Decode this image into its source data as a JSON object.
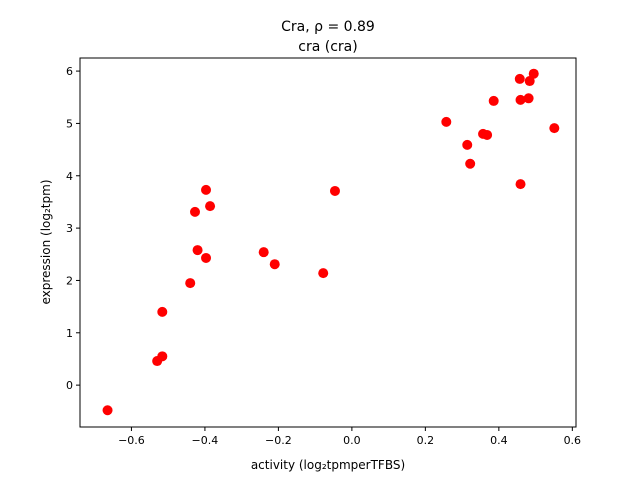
{
  "chart_data": {
    "type": "scatter",
    "title_line1": "Cra, ρ = 0.89",
    "title_line2": "cra (cra)",
    "xlabel": "activity (log₂tpmperTFBS)",
    "ylabel": "expression (log₂tpm)",
    "xlim": [
      -0.74,
      0.61
    ],
    "ylim": [
      -0.8,
      6.25
    ],
    "xticks": [
      -0.6,
      -0.4,
      -0.2,
      0.0,
      0.2,
      0.4,
      0.6
    ],
    "xtick_labels": [
      "−0.6",
      "−0.4",
      "−0.2",
      "0.0",
      "0.2",
      "0.4",
      "0.6"
    ],
    "yticks": [
      0,
      1,
      2,
      3,
      4,
      5,
      6
    ],
    "ytick_labels": [
      "0",
      "1",
      "2",
      "3",
      "4",
      "5",
      "6"
    ],
    "grid": false,
    "marker_color": "#ff0000",
    "points": [
      {
        "x": -0.665,
        "y": -0.48
      },
      {
        "x": -0.53,
        "y": 0.46
      },
      {
        "x": -0.516,
        "y": 0.55
      },
      {
        "x": -0.516,
        "y": 1.4
      },
      {
        "x": -0.44,
        "y": 1.95
      },
      {
        "x": -0.427,
        "y": 3.31
      },
      {
        "x": -0.42,
        "y": 2.58
      },
      {
        "x": -0.397,
        "y": 3.73
      },
      {
        "x": -0.386,
        "y": 3.42
      },
      {
        "x": -0.397,
        "y": 2.43
      },
      {
        "x": -0.24,
        "y": 2.54
      },
      {
        "x": -0.21,
        "y": 2.31
      },
      {
        "x": -0.078,
        "y": 2.14
      },
      {
        "x": -0.046,
        "y": 3.71
      },
      {
        "x": 0.257,
        "y": 5.03
      },
      {
        "x": 0.314,
        "y": 4.59
      },
      {
        "x": 0.322,
        "y": 4.23
      },
      {
        "x": 0.357,
        "y": 4.8
      },
      {
        "x": 0.368,
        "y": 4.78
      },
      {
        "x": 0.386,
        "y": 5.43
      },
      {
        "x": 0.457,
        "y": 5.85
      },
      {
        "x": 0.459,
        "y": 5.45
      },
      {
        "x": 0.459,
        "y": 3.84
      },
      {
        "x": 0.481,
        "y": 5.48
      },
      {
        "x": 0.484,
        "y": 5.81
      },
      {
        "x": 0.495,
        "y": 5.95
      },
      {
        "x": 0.551,
        "y": 4.91
      }
    ]
  }
}
